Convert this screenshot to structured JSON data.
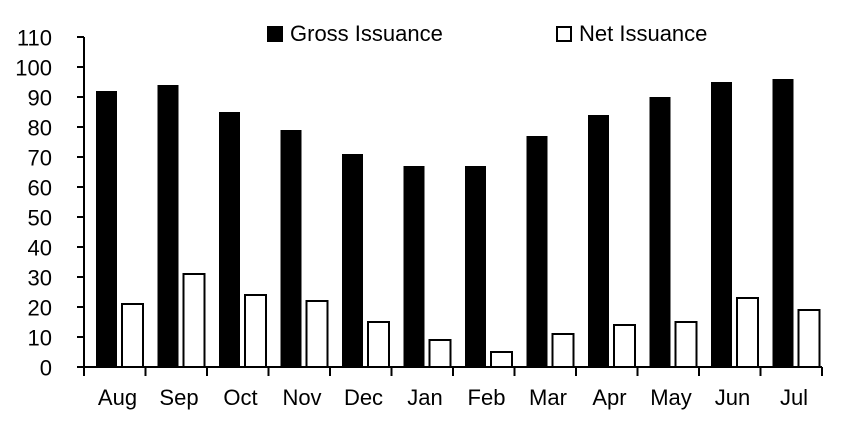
{
  "chart_data": {
    "type": "bar",
    "title": "",
    "xlabel": "",
    "ylabel": "",
    "categories": [
      "Aug",
      "Sep",
      "Oct",
      "Nov",
      "Dec",
      "Jan",
      "Feb",
      "Mar",
      "Apr",
      "May",
      "Jun",
      "Jul"
    ],
    "series": [
      {
        "name": "Gross Issuance",
        "values": [
          92,
          94,
          85,
          79,
          71,
          67,
          67,
          77,
          84,
          90,
          95,
          96
        ],
        "fill": "#000000",
        "stroke": "#000000"
      },
      {
        "name": "Net Issuance",
        "values": [
          21,
          31,
          24,
          22,
          15,
          9,
          5,
          11,
          14,
          15,
          23,
          19
        ],
        "fill": "#ffffff",
        "stroke": "#000000"
      }
    ],
    "ylim": [
      0,
      110
    ],
    "ytick_step": 10,
    "yticks": [
      0,
      10,
      20,
      30,
      40,
      50,
      60,
      70,
      80,
      90,
      100,
      110
    ],
    "grid": false,
    "legend_position": "top",
    "colors": {
      "background": "#ffffff",
      "axis": "#000000",
      "text": "#000000"
    }
  },
  "legend": {
    "gross_label": "Gross Issuance",
    "net_label": "Net Issuance"
  }
}
